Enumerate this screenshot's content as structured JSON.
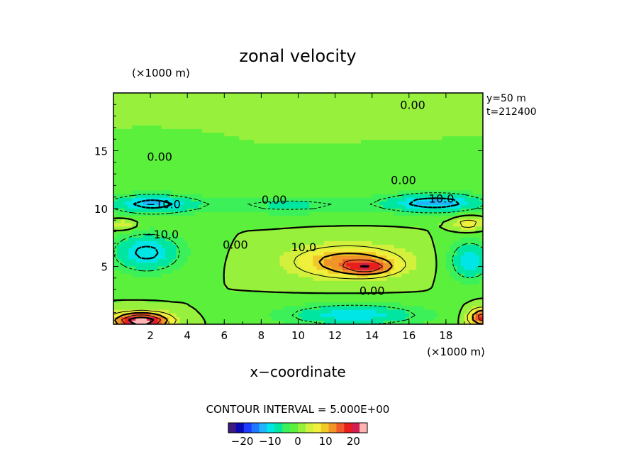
{
  "chart_data": {
    "type": "heatmap",
    "title": "zonal velocity",
    "xlabel": "x−coordinate",
    "x_unit_label": "(×1000 m)",
    "y_unit_label": "(×1000 m)",
    "xlim": [
      0,
      20
    ],
    "ylim": [
      0,
      20
    ],
    "x_ticks": [
      2,
      4,
      6,
      8,
      10,
      12,
      14,
      16,
      18
    ],
    "y_ticks": [
      5,
      10,
      15
    ],
    "annotations": [
      "y=50  m",
      "t=212400"
    ],
    "contour_interval": "CONTOUR INTERVAL = 5.000E+00",
    "contour_labels": [
      {
        "text": "0.00",
        "x": 16.2,
        "y": 19.0
      },
      {
        "text": "0.00",
        "x": 2.5,
        "y": 14.5
      },
      {
        "text": "0.00",
        "x": 15.7,
        "y": 12.5
      },
      {
        "text": "0.00",
        "x": 8.7,
        "y": 10.8
      },
      {
        "text": "−10.0",
        "x": 2.7,
        "y": 10.4
      },
      {
        "text": "−10.0",
        "x": 17.5,
        "y": 10.9
      },
      {
        "text": "−10.0",
        "x": 2.6,
        "y": 7.8
      },
      {
        "text": "0.00",
        "x": 6.6,
        "y": 6.9
      },
      {
        "text": "10.0",
        "x": 10.3,
        "y": 6.7
      },
      {
        "text": "0.00",
        "x": 14.0,
        "y": 2.9
      }
    ],
    "colorbar": {
      "range": [
        -25,
        25
      ],
      "ticks": [
        "−20",
        "−10",
        "0",
        "10",
        "20"
      ],
      "tick_values": [
        -20,
        -10,
        0,
        10,
        20
      ],
      "colors": [
        "#3c1a80",
        "#0a0ab4",
        "#1e3cff",
        "#1e78ff",
        "#1eb4ff",
        "#00e6e6",
        "#00e6a0",
        "#3cf05a",
        "#5af03c",
        "#96f03c",
        "#d2f03c",
        "#f0f03c",
        "#f0c828",
        "#f09628",
        "#f05a28",
        "#e61e1e",
        "#d21e50",
        "#ffb4b4"
      ]
    },
    "features": [
      {
        "name": "upper-band",
        "value": 0,
        "cx": 10,
        "cy": 16,
        "sx": 11,
        "sy": 4
      },
      {
        "name": "jet-band-west",
        "value": -11,
        "cx": 2,
        "cy": 10.4,
        "sx": 2.5,
        "sy": 0.9
      },
      {
        "name": "jet-band-mid",
        "value": -6,
        "cx": 9.5,
        "cy": 10.3,
        "sx": 5,
        "sy": 0.9
      },
      {
        "name": "jet-band-east",
        "value": -12,
        "cx": 17.5,
        "cy": 10.5,
        "sx": 2.8,
        "sy": 0.9
      },
      {
        "name": "west-low",
        "value": -11,
        "cx": 1.8,
        "cy": 6.2,
        "sx": 2.0,
        "sy": 1.8
      },
      {
        "name": "east-low",
        "value": -10,
        "cx": 19.3,
        "cy": 5.5,
        "sx": 1.2,
        "sy": 1.8
      },
      {
        "name": "central-high",
        "value": 13,
        "cx": 12.7,
        "cy": 5.4,
        "sx": 3.0,
        "sy": 1.4
      },
      {
        "name": "central-core",
        "value": 10,
        "cx": 13.8,
        "cy": 4.9,
        "sx": 1.3,
        "sy": 0.6
      },
      {
        "name": "bottom-low",
        "value": -10,
        "cx": 13,
        "cy": 0.8,
        "sx": 4.0,
        "sy": 1.0
      },
      {
        "name": "bottom-left-high",
        "value": 25,
        "cx": 1.5,
        "cy": 0.3,
        "sx": 1.5,
        "sy": 0.7
      },
      {
        "name": "bottom-right-high",
        "value": 18,
        "cx": 20,
        "cy": 0.6,
        "sx": 0.8,
        "sy": 0.8
      },
      {
        "name": "right-mid-high",
        "value": 8,
        "cx": 19.2,
        "cy": 8.7,
        "sx": 0.8,
        "sy": 0.6
      },
      {
        "name": "left-mid-high",
        "value": 6,
        "cx": 0.5,
        "cy": 8.6,
        "sx": 0.8,
        "sy": 0.5
      }
    ]
  }
}
